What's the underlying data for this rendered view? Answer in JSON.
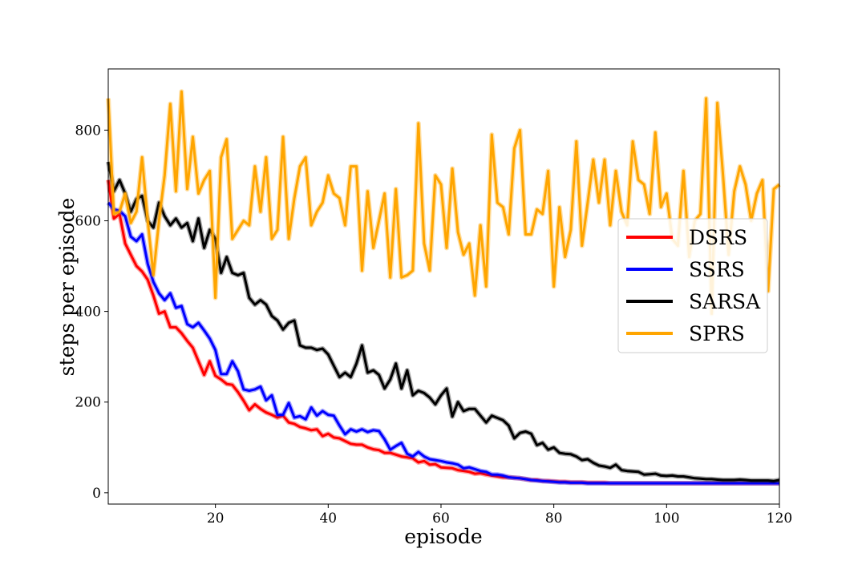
{
  "chart_data": {
    "type": "line",
    "title": "",
    "xlabel": "episode",
    "ylabel": "steps per episode",
    "xlim": [
      1,
      120
    ],
    "ylim": [
      -25,
      935
    ],
    "xticks": [
      20,
      40,
      60,
      80,
      100,
      120
    ],
    "yticks": [
      0,
      200,
      400,
      600,
      800
    ],
    "grid": false,
    "legend_position": "center-right",
    "series": [
      {
        "name": "DSRS",
        "color": "#ff0000",
        "x": [
          1,
          2,
          3,
          4,
          5,
          6,
          7,
          8,
          9,
          10,
          11,
          12,
          13,
          14,
          15,
          16,
          17,
          18,
          19,
          20,
          21,
          22,
          23,
          24,
          25,
          26,
          27,
          28,
          29,
          30,
          31,
          32,
          33,
          34,
          35,
          36,
          37,
          38,
          39,
          40,
          41,
          42,
          43,
          44,
          45,
          46,
          47,
          48,
          49,
          50,
          51,
          52,
          53,
          54,
          55,
          56,
          57,
          58,
          59,
          60,
          61,
          62,
          63,
          64,
          65,
          66,
          67,
          68,
          69,
          70,
          71,
          72,
          73,
          74,
          75,
          76,
          77,
          78,
          79,
          80,
          81,
          82,
          83,
          84,
          85,
          86,
          87,
          88,
          89,
          90,
          91,
          92,
          93,
          94,
          95,
          96,
          97,
          98,
          99,
          100,
          101,
          102,
          103,
          104,
          105,
          106,
          107,
          108,
          109,
          110,
          111,
          112,
          113,
          114,
          115,
          116,
          117,
          118,
          119,
          120
        ],
        "y": [
          690,
          605,
          615,
          550,
          525,
          500,
          488,
          470,
          435,
          395,
          400,
          365,
          365,
          352,
          335,
          320,
          290,
          260,
          290,
          258,
          250,
          240,
          238,
          222,
          203,
          182,
          195,
          185,
          177,
          172,
          166,
          170,
          155,
          152,
          145,
          142,
          138,
          140,
          125,
          130,
          122,
          120,
          114,
          108,
          106,
          106,
          100,
          96,
          94,
          88,
          88,
          84,
          80,
          78,
          76,
          67,
          70,
          62,
          63,
          56,
          55,
          54,
          50,
          48,
          46,
          42,
          43,
          40,
          38,
          36,
          34,
          34,
          33,
          32,
          30,
          28,
          28,
          26,
          26,
          25,
          24,
          24,
          23,
          23,
          23,
          22,
          22,
          22,
          22,
          21,
          21,
          21,
          21,
          21,
          21,
          21,
          21,
          21,
          21,
          21,
          21,
          21,
          21,
          21,
          21,
          21,
          21,
          21,
          21,
          21,
          21,
          21,
          21,
          21,
          21,
          21,
          21,
          21,
          21,
          21
        ]
      },
      {
        "name": "SSRS",
        "color": "#0000ff",
        "x": [
          1,
          2,
          3,
          4,
          5,
          6,
          7,
          8,
          9,
          10,
          11,
          12,
          13,
          14,
          15,
          16,
          17,
          18,
          19,
          20,
          21,
          22,
          23,
          24,
          25,
          26,
          27,
          28,
          29,
          30,
          31,
          32,
          33,
          34,
          35,
          36,
          37,
          38,
          39,
          40,
          41,
          42,
          43,
          44,
          45,
          46,
          47,
          48,
          49,
          50,
          51,
          52,
          53,
          54,
          55,
          56,
          57,
          58,
          59,
          60,
          61,
          62,
          63,
          64,
          65,
          66,
          67,
          68,
          69,
          70,
          71,
          72,
          73,
          74,
          75,
          76,
          77,
          78,
          79,
          80,
          81,
          82,
          83,
          84,
          85,
          86,
          87,
          88,
          89,
          90,
          91,
          92,
          93,
          94,
          95,
          96,
          97,
          98,
          99,
          100,
          101,
          102,
          103,
          104,
          105,
          106,
          107,
          108,
          109,
          110,
          111,
          112,
          113,
          114,
          115,
          116,
          117,
          118,
          119,
          120
        ],
        "y": [
          640,
          625,
          622,
          610,
          565,
          555,
          570,
          505,
          465,
          440,
          425,
          440,
          408,
          412,
          372,
          365,
          375,
          358,
          340,
          315,
          262,
          262,
          290,
          268,
          228,
          225,
          228,
          234,
          204,
          215,
          172,
          172,
          198,
          166,
          169,
          162,
          188,
          170,
          180,
          172,
          170,
          148,
          129,
          140,
          135,
          140,
          134,
          138,
          136,
          118,
          95,
          103,
          110,
          86,
          80,
          90,
          80,
          74,
          72,
          70,
          67,
          65,
          62,
          54,
          56,
          52,
          48,
          46,
          40,
          40,
          38,
          34,
          33,
          32,
          30,
          28,
          27,
          26,
          25,
          24,
          23,
          23,
          22,
          22,
          22,
          21,
          21,
          21,
          21,
          21,
          21,
          21,
          21,
          21,
          21,
          21,
          21,
          21,
          21,
          21,
          21,
          21,
          21,
          21,
          21,
          21,
          21,
          21,
          21,
          21,
          21,
          21,
          21,
          21,
          21,
          21,
          21,
          21,
          21,
          21
        ]
      },
      {
        "name": "SARSA",
        "color": "#000000",
        "x": [
          1,
          2,
          3,
          4,
          5,
          6,
          7,
          8,
          9,
          10,
          11,
          12,
          13,
          14,
          15,
          16,
          17,
          18,
          19,
          20,
          21,
          22,
          23,
          24,
          25,
          26,
          27,
          28,
          29,
          30,
          31,
          32,
          33,
          34,
          35,
          36,
          37,
          38,
          39,
          40,
          41,
          42,
          43,
          44,
          45,
          46,
          47,
          48,
          49,
          50,
          51,
          52,
          53,
          54,
          55,
          56,
          57,
          58,
          59,
          60,
          61,
          62,
          63,
          64,
          65,
          66,
          67,
          68,
          69,
          70,
          71,
          72,
          73,
          74,
          75,
          76,
          77,
          78,
          79,
          80,
          81,
          82,
          83,
          84,
          85,
          86,
          87,
          88,
          89,
          90,
          91,
          92,
          93,
          94,
          95,
          96,
          97,
          98,
          99,
          100,
          101,
          102,
          103,
          104,
          105,
          106,
          107,
          108,
          109,
          110,
          111,
          112,
          113,
          114,
          115,
          116,
          117,
          118,
          119,
          120
        ],
        "y": [
          730,
          665,
          690,
          660,
          620,
          648,
          655,
          600,
          585,
          640,
          610,
          590,
          605,
          585,
          595,
          555,
          605,
          540,
          580,
          560,
          485,
          520,
          485,
          480,
          485,
          430,
          415,
          425,
          415,
          390,
          380,
          360,
          375,
          380,
          325,
          320,
          320,
          315,
          318,
          305,
          280,
          255,
          265,
          255,
          285,
          325,
          265,
          270,
          260,
          230,
          250,
          285,
          230,
          270,
          215,
          225,
          220,
          210,
          195,
          215,
          230,
          168,
          200,
          180,
          185,
          185,
          170,
          155,
          170,
          165,
          160,
          148,
          120,
          132,
          135,
          130,
          105,
          110,
          95,
          100,
          88,
          86,
          85,
          80,
          72,
          74,
          66,
          60,
          58,
          55,
          62,
          50,
          48,
          47,
          46,
          40,
          41,
          42,
          38,
          37,
          38,
          36,
          36,
          34,
          32,
          31,
          30,
          30,
          29,
          28,
          28,
          28,
          29,
          28,
          27,
          27,
          27,
          27,
          26,
          28
        ]
      },
      {
        "name": "SPRS",
        "color": "#ffa500",
        "x": [
          1,
          2,
          3,
          4,
          5,
          6,
          7,
          8,
          9,
          10,
          11,
          12,
          13,
          14,
          15,
          16,
          17,
          18,
          19,
          20,
          21,
          22,
          23,
          24,
          25,
          26,
          27,
          28,
          29,
          30,
          31,
          32,
          33,
          34,
          35,
          36,
          37,
          38,
          39,
          40,
          41,
          42,
          43,
          44,
          45,
          46,
          47,
          48,
          49,
          50,
          51,
          52,
          53,
          54,
          55,
          56,
          57,
          58,
          59,
          60,
          61,
          62,
          63,
          64,
          65,
          66,
          67,
          68,
          69,
          70,
          71,
          72,
          73,
          74,
          75,
          76,
          77,
          78,
          79,
          80,
          81,
          82,
          83,
          84,
          85,
          86,
          87,
          88,
          89,
          90,
          91,
          92,
          93,
          94,
          95,
          96,
          97,
          98,
          99,
          100,
          101,
          102,
          103,
          104,
          105,
          106,
          107,
          108,
          109,
          110,
          111,
          112,
          113,
          114,
          115,
          116,
          117,
          118,
          119,
          120
        ],
        "y": [
          870,
          615,
          620,
          660,
          595,
          620,
          740,
          600,
          480,
          600,
          700,
          858,
          665,
          885,
          670,
          785,
          660,
          690,
          710,
          430,
          740,
          780,
          560,
          580,
          600,
          590,
          720,
          620,
          740,
          560,
          580,
          785,
          560,
          650,
          720,
          740,
          590,
          620,
          640,
          700,
          660,
          650,
          590,
          720,
          720,
          490,
          665,
          540,
          600,
          660,
          475,
          670,
          475,
          480,
          490,
          815,
          550,
          490,
          700,
          680,
          540,
          715,
          575,
          525,
          550,
          435,
          590,
          455,
          790,
          640,
          630,
          570,
          760,
          800,
          570,
          570,
          625,
          615,
          710,
          455,
          630,
          520,
          580,
          775,
          545,
          640,
          735,
          640,
          735,
          590,
          710,
          620,
          590,
          775,
          690,
          680,
          615,
          795,
          630,
          660,
          560,
          545,
          710,
          520,
          600,
          615,
          870,
          395,
          860,
          700,
          525,
          665,
          720,
          680,
          600,
          660,
          690,
          445,
          670,
          680
        ]
      }
    ]
  }
}
